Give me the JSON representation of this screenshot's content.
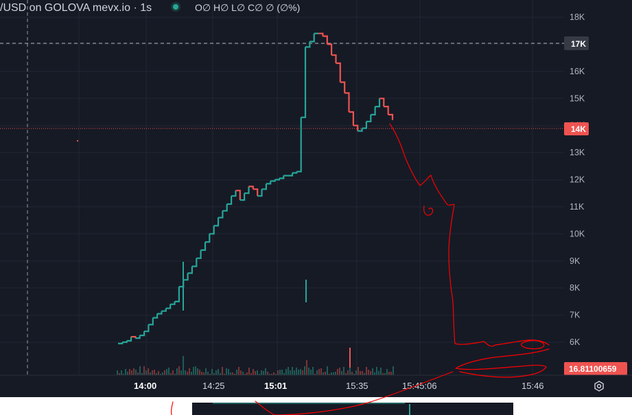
{
  "header": {
    "symbol_title": "/USD on GOLOVA mevx.io · 1s",
    "ohlc_text": "O∅ H∅ L∅ C∅ ∅ (∅%)",
    "status_dot_color": "#26a69a"
  },
  "colors": {
    "background": "#161a25",
    "up": "#26a69a",
    "down": "#ef5350",
    "annotation": "#ff0000",
    "crosshair": "#9598a1"
  },
  "price_axis": {
    "labels": [
      "18K",
      "17K",
      "16K",
      "15K",
      "14K",
      "13K",
      "12K",
      "11K",
      "10K",
      "9K",
      "8K",
      "7K",
      "6K"
    ],
    "crosshair_label": "17K",
    "current_price_label": "14K",
    "last_price_label": "16.81100659"
  },
  "time_axis": {
    "labels": [
      "14:00",
      "14:25",
      "15:01",
      "15:35",
      "15:45:06",
      "15:46"
    ],
    "bold_labels": [
      "14:00",
      "15:01"
    ]
  },
  "icons": {
    "settings": "settings-gear-icon"
  },
  "chart_data": {
    "type": "line",
    "title": "",
    "series": [
      {
        "values": [
          5950,
          6000,
          6050,
          6200,
          6150,
          6250,
          6400,
          6650,
          6900,
          7050,
          7150,
          7250,
          7400,
          7500,
          8050,
          8300,
          8550,
          8800,
          9100,
          9400,
          9700,
          10000,
          10300,
          10600,
          10850,
          11100,
          11400,
          11600,
          11250,
          11500,
          11750,
          11650,
          11400,
          11650,
          11850,
          11950,
          12000,
          12050,
          12150,
          12150,
          12250,
          12300,
          14300,
          16900,
          17100,
          17400,
          17400,
          17300,
          17000,
          16600,
          16300,
          15600,
          15200,
          14500,
          14000,
          13800,
          13900,
          14150,
          14400,
          14700,
          15000,
          14700,
          14400,
          14200
        ]
      }
    ],
    "annotation_labels": [],
    "ylim": [
      5000,
      18300
    ],
    "xlabel": "",
    "ylabel": "",
    "grid": true
  }
}
